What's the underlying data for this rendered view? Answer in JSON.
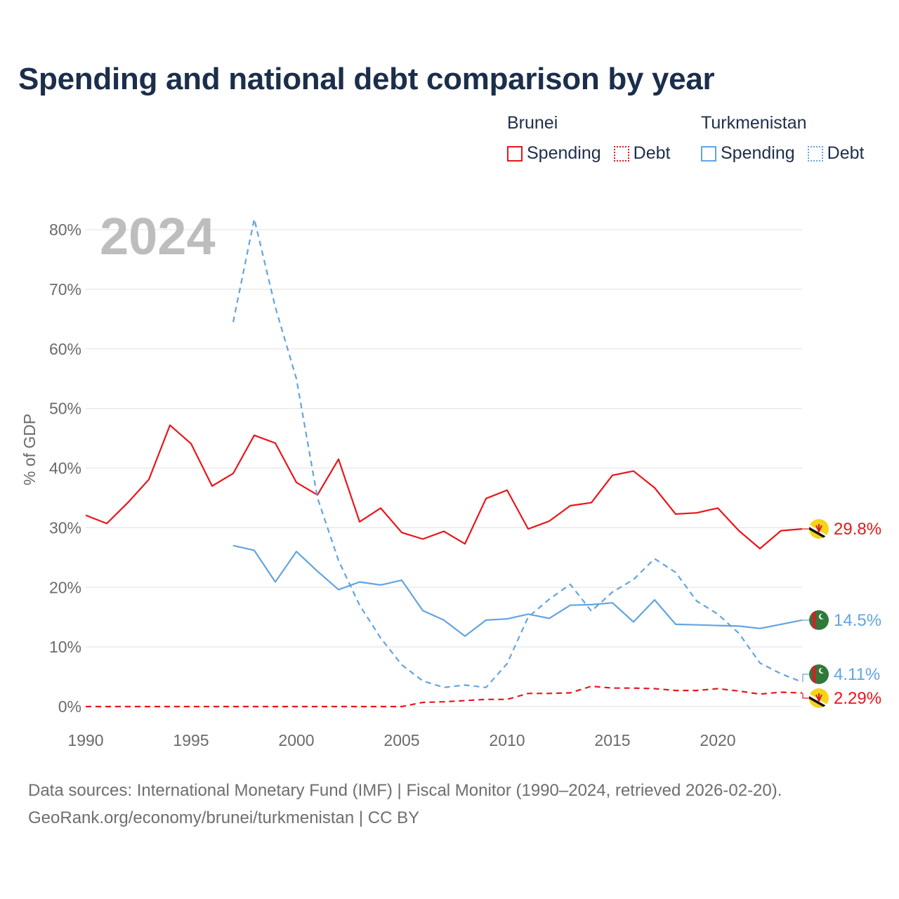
{
  "title": "Spending and national debt comparison by year",
  "legend": {
    "groups": [
      {
        "country": "Brunei",
        "color": "#e8161b",
        "items": [
          {
            "label": "Spending",
            "style": "solid"
          },
          {
            "label": "Debt",
            "style": "dotted"
          }
        ]
      },
      {
        "country": "Turkmenistan",
        "color": "#63a4e0",
        "items": [
          {
            "label": "Spending",
            "style": "solid"
          },
          {
            "label": "Debt",
            "style": "dotted"
          }
        ]
      }
    ]
  },
  "year_label": "2024",
  "footer": {
    "line1": "Data sources: International Monetary Fund (IMF) | Fiscal Monitor (1990–2024, retrieved 2026-02-20).",
    "line2": "GeoRank.org/economy/brunei/turkmenistan | CC BY"
  },
  "chart_data": {
    "type": "line",
    "title": "Spending and national debt comparison by year",
    "xlabel": "",
    "ylabel": "% of GDP",
    "xlim": [
      1990,
      2024
    ],
    "ylim": [
      0,
      80
    ],
    "x_ticks": [
      1990,
      1995,
      2000,
      2005,
      2010,
      2015,
      2020
    ],
    "x_tick_labels": [
      "1990",
      "1995",
      "2000",
      "2005",
      "2010",
      "2015",
      "2020"
    ],
    "y_ticks": [
      0,
      10,
      20,
      30,
      40,
      50,
      60,
      70,
      80
    ],
    "y_tick_labels": [
      "0%",
      "10%",
      "20%",
      "30%",
      "40%",
      "50%",
      "60%",
      "70%",
      "80%"
    ],
    "grid": true,
    "series": [
      {
        "name": "Brunei Spending",
        "country": "Brunei",
        "kind": "Spending",
        "color": "#e8161b",
        "dash": "solid",
        "end_label": "29.8%",
        "x": [
          1990,
          1991,
          1992,
          1993,
          1994,
          1995,
          1996,
          1997,
          1998,
          1999,
          2000,
          2001,
          2002,
          2003,
          2004,
          2005,
          2006,
          2007,
          2008,
          2009,
          2010,
          2011,
          2012,
          2013,
          2014,
          2015,
          2016,
          2017,
          2018,
          2019,
          2020,
          2021,
          2022,
          2023,
          2024
        ],
        "values": [
          32.1,
          30.7,
          34.2,
          38.1,
          47.2,
          44.1,
          37.0,
          39.1,
          45.5,
          44.2,
          37.6,
          35.5,
          41.5,
          31.0,
          33.3,
          29.2,
          28.1,
          29.4,
          27.3,
          34.9,
          36.3,
          29.8,
          31.1,
          33.7,
          34.2,
          38.8,
          39.5,
          36.7,
          32.3,
          32.5,
          33.3,
          29.5,
          26.5,
          29.5,
          29.8
        ]
      },
      {
        "name": "Brunei Debt",
        "country": "Brunei",
        "kind": "Debt",
        "color": "#e8161b",
        "dash": "dashed",
        "end_label": "2.29%",
        "x": [
          1990,
          1991,
          1992,
          1993,
          1994,
          1995,
          1996,
          1997,
          1998,
          1999,
          2000,
          2001,
          2002,
          2003,
          2004,
          2005,
          2006,
          2007,
          2008,
          2009,
          2010,
          2011,
          2012,
          2013,
          2014,
          2015,
          2016,
          2017,
          2018,
          2019,
          2020,
          2021,
          2022,
          2023,
          2024
        ],
        "values": [
          0,
          0,
          0,
          0,
          0,
          0,
          0,
          0,
          0,
          0,
          0,
          0,
          0,
          0,
          0,
          0,
          0.7,
          0.8,
          1.0,
          1.2,
          1.2,
          2.2,
          2.2,
          2.3,
          3.4,
          3.1,
          3.1,
          3.0,
          2.7,
          2.7,
          3.0,
          2.6,
          2.1,
          2.4,
          2.29
        ]
      },
      {
        "name": "Turkmenistan Spending",
        "country": "Turkmenistan",
        "kind": "Spending",
        "color": "#63a4e0",
        "dash": "solid",
        "end_label": "14.5%",
        "x": [
          1997,
          1998,
          1999,
          2000,
          2001,
          2002,
          2003,
          2004,
          2005,
          2006,
          2007,
          2008,
          2009,
          2010,
          2011,
          2012,
          2013,
          2014,
          2015,
          2016,
          2017,
          2018,
          2019,
          2020,
          2021,
          2022,
          2023,
          2024
        ],
        "values": [
          27.0,
          26.2,
          20.9,
          26.0,
          22.7,
          19.6,
          20.9,
          20.4,
          21.2,
          16.1,
          14.5,
          11.8,
          14.5,
          14.7,
          15.5,
          14.8,
          17.0,
          17.1,
          17.4,
          14.2,
          17.9,
          13.8,
          13.7,
          13.6,
          13.5,
          13.1,
          13.8,
          14.5
        ]
      },
      {
        "name": "Turkmenistan Debt",
        "country": "Turkmenistan",
        "kind": "Debt",
        "color": "#63a4e0",
        "dash": "dashed",
        "end_label": "4.11%",
        "x": [
          1997,
          1998,
          1999,
          2000,
          2001,
          2002,
          2003,
          2004,
          2005,
          2006,
          2007,
          2008,
          2009,
          2010,
          2011,
          2012,
          2013,
          2014,
          2015,
          2016,
          2017,
          2018,
          2019,
          2020,
          2021,
          2022,
          2023,
          2024
        ],
        "values": [
          64.5,
          81.8,
          67.0,
          55.0,
          35.0,
          24.5,
          17.0,
          11.5,
          7.0,
          4.3,
          3.2,
          3.6,
          3.2,
          7.2,
          15.0,
          18.0,
          20.5,
          16.0,
          19.2,
          21.3,
          24.8,
          22.5,
          17.7,
          15.5,
          12.3,
          7.3,
          5.5,
          4.11
        ]
      }
    ]
  }
}
